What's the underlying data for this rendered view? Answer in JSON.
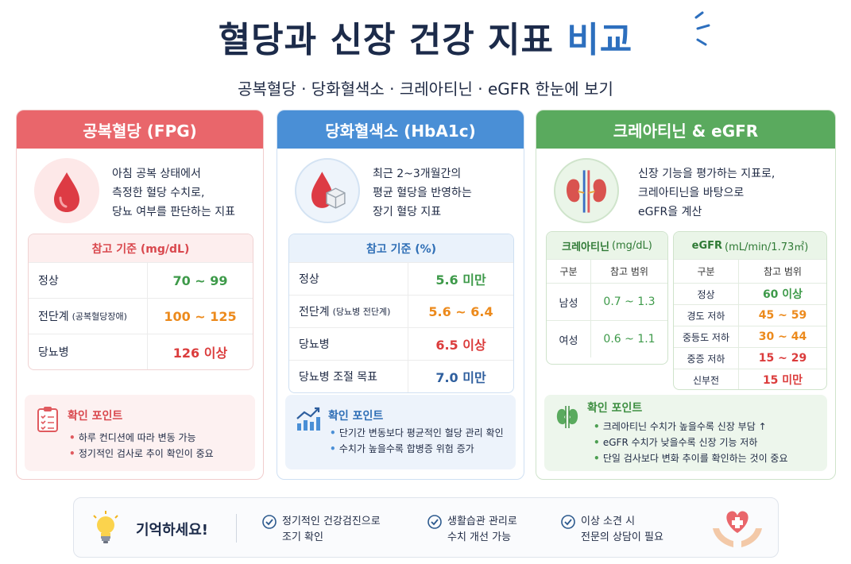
{
  "title_main": "혈당과 신장 건강 지표",
  "title_highlight": "비교",
  "subtitle": "공복혈당 · 당화혈색소 · 크레아티닌 · eGFR 한눈에 보기",
  "colors": {
    "red": "#e9666b",
    "blue": "#4a8fd6",
    "green": "#5aaa5e",
    "navy": "#1c2b4a"
  },
  "fpg": {
    "header": "공복혈당 (FPG)",
    "icon": "blood-drop-icon",
    "desc": [
      "아침 공복 상태에서",
      "측정한 혈당 수치로,",
      "당뇨 여부를 판단하는 지표"
    ],
    "ref_title": "참고 기준 (mg/dL)",
    "rows": [
      {
        "label": "정상",
        "note": "",
        "value": "70 ~ 99"
      },
      {
        "label": "전단계",
        "note": "(공복혈당장애)",
        "value": "100 ~ 125"
      },
      {
        "label": "당뇨병",
        "note": "",
        "value": "126 이상"
      }
    ],
    "point_title": "확인 포인트",
    "points": [
      "하루 컨디션에 따라 변동 가능",
      "정기적인 검사로 추이 확인이 중요"
    ]
  },
  "hba1c": {
    "header": "당화혈색소 (HbA1c)",
    "icon": "blood-drop-cube-icon",
    "desc": [
      "최근 2~3개월간의",
      "평균 혈당을 반영하는",
      "장기 혈당 지표"
    ],
    "ref_title": "참고 기준 (%)",
    "rows": [
      {
        "label": "정상",
        "note": "",
        "value": "5.6 미만"
      },
      {
        "label": "전단계",
        "note": "(당뇨병 전단계)",
        "value": "5.6 ~ 6.4"
      },
      {
        "label": "당뇨병",
        "note": "",
        "value": "6.5 이상"
      },
      {
        "label": "당뇨병 조절 목표",
        "note": "",
        "value": "7.0 미만"
      }
    ],
    "point_title": "확인 포인트",
    "points": [
      "단기간 변동보다 평균적인 혈당 관리 확인",
      "수치가 높을수록 합병증 위험 증가"
    ]
  },
  "kidney": {
    "header": "크레아티닌 & eGFR",
    "icon": "kidneys-icon",
    "desc": [
      "신장 기능을 평가하는 지표로,",
      "크레아티닌을 바탕으로",
      "eGFR을 계산"
    ],
    "creatinine": {
      "title": "크레아티닌",
      "unit": "(mg/dL)",
      "col1": "구분",
      "col2": "참고 범위",
      "rows": [
        {
          "label": "남성",
          "value": "0.7 ~ 1.3"
        },
        {
          "label": "여성",
          "value": "0.6 ~ 1.1"
        }
      ]
    },
    "egfr": {
      "title": "eGFR",
      "unit": "(mL/min/1.73㎡)",
      "col1": "구분",
      "col2": "참고 범위",
      "rows": [
        {
          "label": "정상",
          "value": "60 이상"
        },
        {
          "label": "경도 저하",
          "value": "45 ~ 59"
        },
        {
          "label": "중등도 저하",
          "value": "30 ~ 44"
        },
        {
          "label": "중증 저하",
          "value": "15 ~ 29"
        },
        {
          "label": "신부전",
          "value": "15 미만"
        }
      ]
    },
    "point_title": "확인 포인트",
    "points": [
      "크레아티닌 수치가 높을수록 신장 부담 ↑",
      "eGFR 수치가 낮을수록 신장 기능 저하",
      "단일 검사보다 변화 추이를 확인하는 것이 중요"
    ]
  },
  "bottom": {
    "remember": "기억하세요!",
    "tips": [
      [
        "정기적인 건강검진으로",
        "조기 확인"
      ],
      [
        "생활습관 관리로",
        "수치 개선 가능"
      ],
      [
        "이상 소견 시",
        "전문의 상담이 필요"
      ]
    ]
  }
}
